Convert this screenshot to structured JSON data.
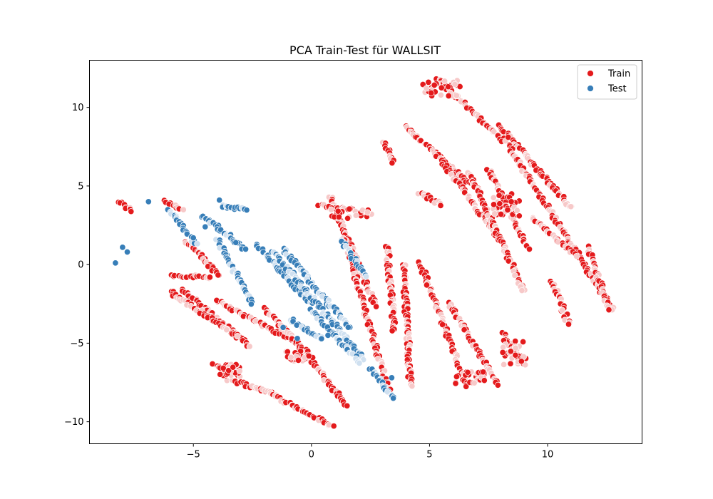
{
  "chart_data": {
    "type": "scatter",
    "title": "PCA Train-Test für WALLSIT",
    "xlabel": "",
    "ylabel": "",
    "xlim": [
      -9.4,
      14.0
    ],
    "ylim": [
      -11.4,
      13.0
    ],
    "x_ticks": [
      -5,
      0,
      5,
      10
    ],
    "y_ticks": [
      -10,
      -5,
      0,
      5,
      10
    ],
    "x_tick_labels": [
      "−5",
      "0",
      "5",
      "10"
    ],
    "y_tick_labels": [
      "−10",
      "−5",
      "0",
      "5",
      "10"
    ],
    "grid": false,
    "legend_position": "top-right",
    "series": [
      {
        "name": "Train",
        "color": "#e41a1c",
        "fade_color": "#f7c9c9",
        "strokes": [
          [
            [
              -8.2,
              4.0
            ],
            [
              -7.6,
              3.4
            ]
          ],
          [
            [
              -6.3,
              4.1
            ],
            [
              -5.5,
              3.5
            ]
          ],
          [
            [
              -5.3,
              1.5
            ],
            [
              -3.9,
              -0.7
            ]
          ],
          [
            [
              -5.9,
              -0.7
            ],
            [
              -4.3,
              -0.8
            ]
          ],
          [
            [
              -5.5,
              -1.6
            ],
            [
              -2.6,
              -5.2
            ]
          ],
          [
            [
              -6.0,
              -1.7
            ],
            [
              -3.1,
              -4.6
            ]
          ],
          [
            [
              -4.0,
              -2.3
            ],
            [
              -0.6,
              -5.0
            ]
          ],
          [
            [
              -4.2,
              -6.3
            ],
            [
              -3.1,
              -7.1
            ]
          ],
          [
            [
              -3.5,
              -7.3
            ],
            [
              -1.6,
              -8.2
            ]
          ],
          [
            [
              -2.0,
              -8.0
            ],
            [
              0.9,
              -10.3
            ]
          ],
          [
            [
              -0.7,
              -4.8
            ],
            [
              1.5,
              -9.0
            ]
          ],
          [
            [
              -2.0,
              -2.8
            ],
            [
              0.0,
              -5.9
            ]
          ],
          [
            [
              0.8,
              4.3
            ],
            [
              2.7,
              -2.6
            ]
          ],
          [
            [
              0.3,
              3.8
            ],
            [
              1.4,
              3.5
            ]
          ],
          [
            [
              1.4,
              1.6
            ],
            [
              3.3,
              -8.2
            ]
          ],
          [
            [
              3.2,
              1.2
            ],
            [
              3.5,
              -4.3
            ]
          ],
          [
            [
              3.1,
              7.8
            ],
            [
              3.5,
              6.5
            ]
          ],
          [
            [
              3.9,
              0.0
            ],
            [
              4.2,
              -7.8
            ]
          ],
          [
            [
              4.0,
              8.8
            ],
            [
              6.7,
              5.1
            ]
          ],
          [
            [
              4.6,
              4.6
            ],
            [
              5.5,
              3.8
            ]
          ],
          [
            [
              4.6,
              0.1
            ],
            [
              6.6,
              -7.8
            ]
          ],
          [
            [
              5.2,
              7.2
            ],
            [
              8.0,
              1.5
            ]
          ],
          [
            [
              5.3,
              11.8
            ],
            [
              8.2,
              7.8
            ]
          ],
          [
            [
              5.8,
              -2.5
            ],
            [
              7.9,
              -7.6
            ]
          ],
          [
            [
              6.7,
              5.8
            ],
            [
              9.0,
              -1.7
            ]
          ],
          [
            [
              7.5,
              6.1
            ],
            [
              9.2,
              1.0
            ]
          ],
          [
            [
              8.1,
              -4.4
            ],
            [
              9.0,
              -6.3
            ]
          ],
          [
            [
              8.0,
              8.8
            ],
            [
              11.0,
              3.6
            ]
          ],
          [
            [
              8.3,
              7.6
            ],
            [
              12.8,
              -2.9
            ]
          ],
          [
            [
              9.3,
              3.0
            ],
            [
              11.2,
              0.6
            ]
          ],
          [
            [
              10.2,
              -1.0
            ],
            [
              10.9,
              -3.8
            ]
          ],
          [
            [
              11.7,
              1.1
            ],
            [
              12.6,
              -2.8
            ]
          ]
        ],
        "clusters": [
          [
            [
              4.7,
              10.7
            ],
            [
              6.3,
              11.8
            ]
          ],
          [
            [
              7.7,
              4.6
            ],
            [
              8.8,
              3.0
            ]
          ],
          [
            [
              8.1,
              -4.8
            ],
            [
              9.1,
              -6.4
            ]
          ],
          [
            [
              0.8,
              3.6
            ],
            [
              2.6,
              2.9
            ]
          ],
          [
            [
              -3.9,
              -6.3
            ],
            [
              -3.0,
              -7.1
            ]
          ],
          [
            [
              -1.1,
              -5.5
            ],
            [
              -0.1,
              -6.2
            ]
          ],
          [
            [
              6.1,
              -6.8
            ],
            [
              7.4,
              -7.6
            ]
          ]
        ]
      },
      {
        "name": "Test",
        "color": "#377eb8",
        "fade_color": "#cfe0f0",
        "strokes": [
          [
            [
              -6.0,
              3.5
            ],
            [
              -4.9,
              1.3
            ]
          ],
          [
            [
              -4.6,
              3.1
            ],
            [
              -2.8,
              1.0
            ]
          ],
          [
            [
              -3.8,
              3.7
            ],
            [
              -2.8,
              3.5
            ]
          ],
          [
            [
              -2.3,
              1.2
            ],
            [
              0.0,
              -2.5
            ]
          ],
          [
            [
              -1.6,
              0.8
            ],
            [
              2.2,
              -6.0
            ]
          ],
          [
            [
              -1.2,
              1.0
            ],
            [
              1.6,
              -4.0
            ]
          ],
          [
            [
              -0.9,
              -3.5
            ],
            [
              0.5,
              -4.8
            ]
          ],
          [
            [
              0.0,
              -2.9
            ],
            [
              2.1,
              -6.3
            ]
          ],
          [
            [
              1.3,
              1.5
            ],
            [
              2.3,
              -0.8
            ]
          ],
          [
            [
              2.5,
              -6.6
            ],
            [
              3.5,
              -8.5
            ]
          ],
          [
            [
              -4.0,
              1.6
            ],
            [
              -2.5,
              -2.5
            ]
          ]
        ],
        "points": [
          [
            -8.3,
            0.1
          ],
          [
            -8.0,
            1.1
          ],
          [
            -7.8,
            0.8
          ],
          [
            -6.9,
            4.0
          ],
          [
            -5.0,
            1.7
          ],
          [
            -4.5,
            2.4
          ],
          [
            -3.9,
            4.1
          ],
          [
            -3.2,
            1.4
          ],
          [
            -1.2,
            -4.0
          ],
          [
            -0.6,
            -4.7
          ],
          [
            0.7,
            -4.5
          ],
          [
            3.4,
            -7.2
          ]
        ]
      }
    ]
  }
}
